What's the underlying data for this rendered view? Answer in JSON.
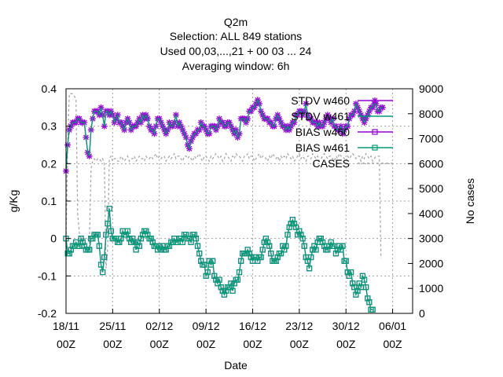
{
  "chart_data": {
    "type": "line",
    "title": [
      "Q2m",
      "Selection: ALL    849 stations",
      "Used  00,03,...,21  + 00 03 ... 24",
      "Averaging window:  6h"
    ],
    "xlabel": "Date",
    "ylabel": "g/Kg",
    "y2label": "No cases",
    "ylim": [
      -0.2,
      0.4
    ],
    "y2lim": [
      0,
      9000
    ],
    "yticks": [
      "0.4",
      "0.3",
      "0.2",
      "0.1",
      "0",
      "-0.1",
      "-0.2"
    ],
    "y2ticks": [
      "9000",
      "8000",
      "7000",
      "6000",
      "5000",
      "4000",
      "3000",
      "2000",
      "1000",
      "0"
    ],
    "xticks": [
      {
        "day": 0,
        "line1": "18/11",
        "line2": "00Z"
      },
      {
        "day": 7,
        "line1": "25/11",
        "line2": "00Z"
      },
      {
        "day": 14,
        "line1": "02/12",
        "line2": "00Z"
      },
      {
        "day": 21,
        "line1": "09/12",
        "line2": "00Z"
      },
      {
        "day": 28,
        "line1": "16/12",
        "line2": "00Z"
      },
      {
        "day": 35,
        "line1": "23/12",
        "line2": "00Z"
      },
      {
        "day": 42,
        "line1": "30/12",
        "line2": "00Z"
      },
      {
        "day": 49,
        "line1": "06/01",
        "line2": "00Z"
      }
    ],
    "xlim_days": [
      0,
      52
    ],
    "x_start": "18/11 00Z",
    "x_step_hours": 6,
    "grid": true,
    "legend_position": "top-right",
    "series": [
      {
        "name": "STDV w460",
        "color": "#9400d3",
        "marker": "star",
        "axis": "y1",
        "values": [
          0.18,
          0.25,
          0.29,
          0.3,
          0.31,
          0.31,
          0.31,
          0.32,
          0.32,
          0.31,
          0.31,
          0.31,
          0.27,
          0.23,
          0.22,
          0.29,
          0.32,
          0.34,
          0.34,
          0.34,
          0.33,
          0.35,
          0.33,
          0.3,
          0.34,
          0.34,
          0.33,
          0.34,
          0.33,
          0.31,
          0.32,
          0.33,
          0.31,
          0.31,
          0.3,
          0.29,
          0.31,
          0.32,
          0.31,
          0.29,
          0.3,
          0.3,
          0.3,
          0.31,
          0.32,
          0.31,
          0.33,
          0.32,
          0.33,
          0.32,
          0.3,
          0.29,
          0.29,
          0.28,
          0.3,
          0.32,
          0.32,
          0.31,
          0.3,
          0.29,
          0.28,
          0.29,
          0.31,
          0.3,
          0.3,
          0.31,
          0.33,
          0.3,
          0.31,
          0.3,
          0.29,
          0.28,
          0.27,
          0.25,
          0.24,
          0.26,
          0.27,
          0.28,
          0.28,
          0.29,
          0.29,
          0.31,
          0.3,
          0.3,
          0.29,
          0.28,
          0.28,
          0.3,
          0.3,
          0.3,
          0.29,
          0.3,
          0.32,
          0.31,
          0.31,
          0.3,
          0.3,
          0.31,
          0.31,
          0.3,
          0.29,
          0.28,
          0.29,
          0.27,
          0.28,
          0.32,
          0.32,
          0.32,
          0.31,
          0.32,
          0.34,
          0.34,
          0.35,
          0.35,
          0.36,
          0.37,
          0.36,
          0.34,
          0.33,
          0.32,
          0.32,
          0.32,
          0.31,
          0.31,
          0.3,
          0.3,
          0.32,
          0.33,
          0.32,
          0.31,
          0.3,
          0.3,
          0.29,
          0.3,
          0.29,
          0.3,
          0.31,
          0.31,
          0.33,
          0.33,
          0.34,
          0.34,
          0.33,
          0.34,
          0.36,
          0.33,
          0.32,
          0.32,
          0.31,
          0.31,
          0.31,
          0.3,
          0.31,
          0.3,
          0.3,
          0.31,
          0.32,
          0.33,
          0.32,
          0.31,
          0.32,
          0.3,
          0.3,
          0.29,
          0.29,
          0.3,
          0.28,
          0.29,
          0.3,
          0.3,
          0.32,
          0.33,
          0.33,
          0.34,
          0.36,
          0.35,
          0.34,
          0.33,
          0.32,
          0.31,
          0.32,
          0.33,
          0.34,
          0.35,
          0.35,
          0.36,
          0.36,
          0.34,
          0.34,
          0.35,
          0.35
        ]
      },
      {
        "name": "STDV w461",
        "color": "#009e73",
        "marker": "line",
        "axis": "y1",
        "values": [
          0.18,
          0.25,
          0.29,
          0.3,
          0.31,
          0.31,
          0.31,
          0.32,
          0.32,
          0.31,
          0.31,
          0.31,
          0.27,
          0.23,
          0.22,
          0.29,
          0.32,
          0.34,
          0.34,
          0.34,
          0.33,
          0.35,
          0.33,
          0.3,
          0.34,
          0.34,
          0.33,
          0.34,
          0.33,
          0.31,
          0.32,
          0.33,
          0.31,
          0.31,
          0.3,
          0.29,
          0.31,
          0.32,
          0.31,
          0.29,
          0.3,
          0.3,
          0.3,
          0.31,
          0.32,
          0.31,
          0.33,
          0.32,
          0.33,
          0.32,
          0.3,
          0.29,
          0.29,
          0.28,
          0.3,
          0.32,
          0.32,
          0.31,
          0.3,
          0.29,
          0.28,
          0.29,
          0.31,
          0.3,
          0.3,
          0.31,
          0.33,
          0.3,
          0.31,
          0.3,
          0.29,
          0.28,
          0.27,
          0.25,
          0.24,
          0.26,
          0.27,
          0.28,
          0.28,
          0.29,
          0.29,
          0.31,
          0.3,
          0.3,
          0.29,
          0.28,
          0.28,
          0.3,
          0.3,
          0.3,
          0.29,
          0.3,
          0.32,
          0.31,
          0.31,
          0.3,
          0.3,
          0.31,
          0.31,
          0.3,
          0.29,
          0.28,
          0.29,
          0.27,
          0.28,
          0.32,
          0.32,
          0.32,
          0.31,
          0.32,
          0.34,
          0.34,
          0.35,
          0.35,
          0.36,
          0.37,
          0.36,
          0.34,
          0.33,
          0.32,
          0.32,
          0.32,
          0.31,
          0.31,
          0.3,
          0.3,
          0.32,
          0.33,
          0.32,
          0.31,
          0.3,
          0.3,
          0.29,
          0.3,
          0.29,
          0.3,
          0.31,
          0.31,
          0.33,
          0.33,
          0.34,
          0.34,
          0.33,
          0.34,
          0.36,
          0.33,
          0.32,
          0.32,
          0.31,
          0.31,
          0.31,
          0.3,
          0.31,
          0.3,
          0.3,
          0.31,
          0.32,
          0.33,
          0.32,
          0.31,
          0.32,
          0.3,
          0.3,
          0.29,
          0.29,
          0.3,
          0.28,
          0.29,
          0.3,
          0.3,
          0.32,
          0.33,
          0.33,
          0.34,
          0.36,
          0.35,
          0.34,
          0.33,
          0.32,
          0.31,
          0.32,
          0.33,
          0.34,
          0.35,
          0.35,
          0.36,
          0.36,
          0.34,
          0.34,
          0.35,
          0.35
        ]
      },
      {
        "name": "BIAS w460",
        "color": "#9400d3",
        "marker": "square",
        "axis": "y1",
        "values": [
          0.0,
          -0.04,
          -0.04,
          -0.03,
          -0.02,
          -0.02,
          -0.01,
          -0.02,
          -0.02,
          0.0,
          -0.01,
          -0.02,
          -0.03,
          -0.03,
          -0.03,
          0.0,
          0.0,
          0.01,
          0.01,
          0.01,
          -0.02,
          -0.07,
          -0.09,
          -0.05,
          0.01,
          0.04,
          0.08,
          0.02,
          0.0,
          0.0,
          0.0,
          -0.01,
          -0.01,
          0.0,
          0.02,
          0.01,
          0.01,
          0.02,
          0.0,
          -0.01,
          0.0,
          -0.01,
          -0.03,
          -0.01,
          -0.02,
          0.0,
          0.01,
          0.02,
          0.02,
          0.01,
          0.0,
          0.0,
          -0.01,
          -0.02,
          -0.02,
          -0.03,
          -0.02,
          -0.03,
          -0.02,
          -0.03,
          -0.03,
          -0.02,
          -0.02,
          -0.01,
          -0.01,
          0.0,
          -0.01,
          -0.01,
          0.0,
          0.0,
          -0.01,
          0.01,
          0.01,
          0.0,
          0.0,
          -0.01,
          0.01,
          0.01,
          0.0,
          -0.02,
          -0.04,
          -0.06,
          -0.07,
          -0.07,
          -0.1,
          -0.09,
          -0.06,
          -0.07,
          -0.06,
          -0.1,
          -0.11,
          -0.12,
          -0.11,
          -0.13,
          -0.14,
          -0.15,
          -0.14,
          -0.13,
          -0.13,
          -0.12,
          -0.14,
          -0.12,
          -0.11,
          -0.11,
          -0.09,
          -0.06,
          -0.04,
          -0.04,
          -0.04,
          -0.03,
          -0.04,
          -0.05,
          -0.06,
          -0.05,
          -0.05,
          -0.06,
          -0.05,
          -0.05,
          -0.03,
          -0.01,
          0.0,
          -0.01,
          -0.02,
          -0.04,
          -0.06,
          -0.06,
          -0.06,
          -0.05,
          -0.04,
          -0.04,
          -0.02,
          -0.03,
          -0.02,
          0.01,
          0.03,
          0.04,
          0.05,
          0.04,
          0.03,
          0.01,
          0.02,
          0.01,
          0.0,
          -0.02,
          -0.05,
          -0.06,
          -0.08,
          -0.05,
          -0.03,
          -0.02,
          -0.03,
          -0.01,
          0.0,
          0.0,
          -0.01,
          -0.02,
          -0.03,
          -0.03,
          -0.02,
          -0.01,
          -0.02,
          -0.02,
          -0.04,
          -0.03,
          -0.02,
          -0.03,
          -0.02,
          -0.06,
          -0.06,
          -0.09,
          -0.1,
          -0.09,
          -0.12,
          -0.13,
          -0.15,
          -0.14,
          -0.12,
          -0.13,
          -0.1,
          -0.11,
          -0.13,
          -0.16,
          -0.17,
          -0.19,
          -0.19
        ]
      },
      {
        "name": "BIAS w461",
        "color": "#009e73",
        "marker": "square",
        "axis": "y1",
        "values": [
          0.0,
          -0.04,
          -0.04,
          -0.03,
          -0.02,
          -0.02,
          -0.01,
          -0.02,
          -0.02,
          0.0,
          -0.01,
          -0.02,
          -0.03,
          -0.03,
          -0.03,
          0.0,
          0.0,
          0.01,
          0.01,
          0.01,
          -0.02,
          -0.07,
          -0.09,
          -0.05,
          0.01,
          0.04,
          0.08,
          0.02,
          0.0,
          0.0,
          0.0,
          -0.01,
          -0.01,
          0.0,
          0.02,
          0.01,
          0.01,
          0.02,
          0.0,
          -0.01,
          0.0,
          -0.01,
          -0.03,
          -0.01,
          -0.02,
          0.0,
          0.01,
          0.02,
          0.02,
          0.01,
          0.0,
          0.0,
          -0.01,
          -0.02,
          -0.02,
          -0.03,
          -0.02,
          -0.03,
          -0.02,
          -0.03,
          -0.03,
          -0.02,
          -0.02,
          -0.01,
          -0.01,
          0.0,
          -0.01,
          -0.01,
          0.0,
          0.0,
          -0.01,
          0.01,
          0.01,
          0.0,
          0.0,
          -0.01,
          0.01,
          0.01,
          0.0,
          -0.02,
          -0.04,
          -0.06,
          -0.07,
          -0.07,
          -0.1,
          -0.09,
          -0.06,
          -0.07,
          -0.06,
          -0.1,
          -0.11,
          -0.12,
          -0.11,
          -0.13,
          -0.14,
          -0.15,
          -0.14,
          -0.13,
          -0.13,
          -0.12,
          -0.14,
          -0.12,
          -0.11,
          -0.11,
          -0.09,
          -0.06,
          -0.04,
          -0.04,
          -0.04,
          -0.03,
          -0.04,
          -0.05,
          -0.06,
          -0.05,
          -0.05,
          -0.06,
          -0.05,
          -0.05,
          -0.03,
          -0.01,
          0.0,
          -0.01,
          -0.02,
          -0.04,
          -0.06,
          -0.06,
          -0.06,
          -0.05,
          -0.04,
          -0.04,
          -0.02,
          -0.03,
          -0.02,
          0.01,
          0.03,
          0.04,
          0.05,
          0.04,
          0.03,
          0.01,
          0.02,
          0.01,
          0.0,
          -0.02,
          -0.05,
          -0.06,
          -0.08,
          -0.05,
          -0.03,
          -0.02,
          -0.03,
          -0.01,
          0.0,
          0.0,
          -0.01,
          -0.02,
          -0.03,
          -0.03,
          -0.02,
          -0.01,
          -0.02,
          -0.02,
          -0.04,
          -0.03,
          -0.02,
          -0.03,
          -0.02,
          -0.06,
          -0.06,
          -0.09,
          -0.1,
          -0.09,
          -0.12,
          -0.13,
          -0.15,
          -0.14,
          -0.12,
          -0.13,
          -0.1,
          -0.11,
          -0.13,
          -0.16,
          -0.17,
          -0.19,
          -0.19
        ]
      },
      {
        "name": "CASES",
        "color": "#a0a0a0",
        "marker": "dashed",
        "axis": "y2",
        "values": [
          2800,
          6800,
          8800,
          8800,
          8800,
          8700,
          8600,
          4000,
          3200,
          3000,
          3000,
          3000,
          3000,
          3000,
          2800,
          5800,
          6100,
          6200,
          6100,
          6200,
          6200,
          6100,
          6200,
          6000,
          1800,
          2600,
          6200,
          6300,
          6100,
          6200,
          6200,
          6100,
          6100,
          6300,
          6200,
          6100,
          6200,
          6300,
          6100,
          6200,
          6200,
          6300,
          6100,
          6200,
          6300,
          6200,
          6200,
          6100,
          6300,
          6200,
          6200,
          6300,
          6200,
          6300,
          6400,
          6200,
          6300,
          6200,
          6300,
          6300,
          6100,
          6200,
          6300,
          6200,
          6300,
          6400,
          6200,
          6300,
          6300,
          6200,
          6100,
          6300,
          6300,
          6200,
          6300,
          6200,
          6100,
          6300,
          6200,
          6300,
          6400,
          6200,
          6100,
          6300,
          6300,
          6200,
          6100,
          6300,
          6200,
          6300,
          6400,
          6300,
          6200,
          6300,
          6100,
          6200,
          6400,
          6300,
          6200,
          6100,
          6300,
          6200,
          6400,
          6300,
          6300,
          6200,
          6100,
          6300,
          6300,
          6400,
          6200,
          6300,
          6300,
          6100,
          6200,
          6300,
          6400,
          6200,
          6300,
          6300,
          6200,
          6100,
          6300,
          6200,
          6400,
          6300,
          6200,
          6300,
          6100,
          6300,
          6200,
          6300,
          6200,
          6400,
          6300,
          6200,
          6300,
          6100,
          6200,
          6300,
          6400,
          6200,
          6300,
          6200,
          6100,
          6300,
          6300,
          6200,
          6400,
          6300,
          6200,
          6300,
          6100,
          6200,
          6300,
          6400,
          6300,
          6200,
          6300,
          6300,
          6200,
          6100,
          6300,
          6200,
          6400,
          6300,
          6300,
          6200,
          6100,
          6300,
          6200,
          6300,
          6400,
          6300,
          6200,
          6300,
          6300,
          6100,
          6300,
          6200,
          6400,
          6300,
          6200,
          6300,
          6100,
          6200,
          6300,
          6300,
          6300,
          2200
        ]
      }
    ]
  }
}
